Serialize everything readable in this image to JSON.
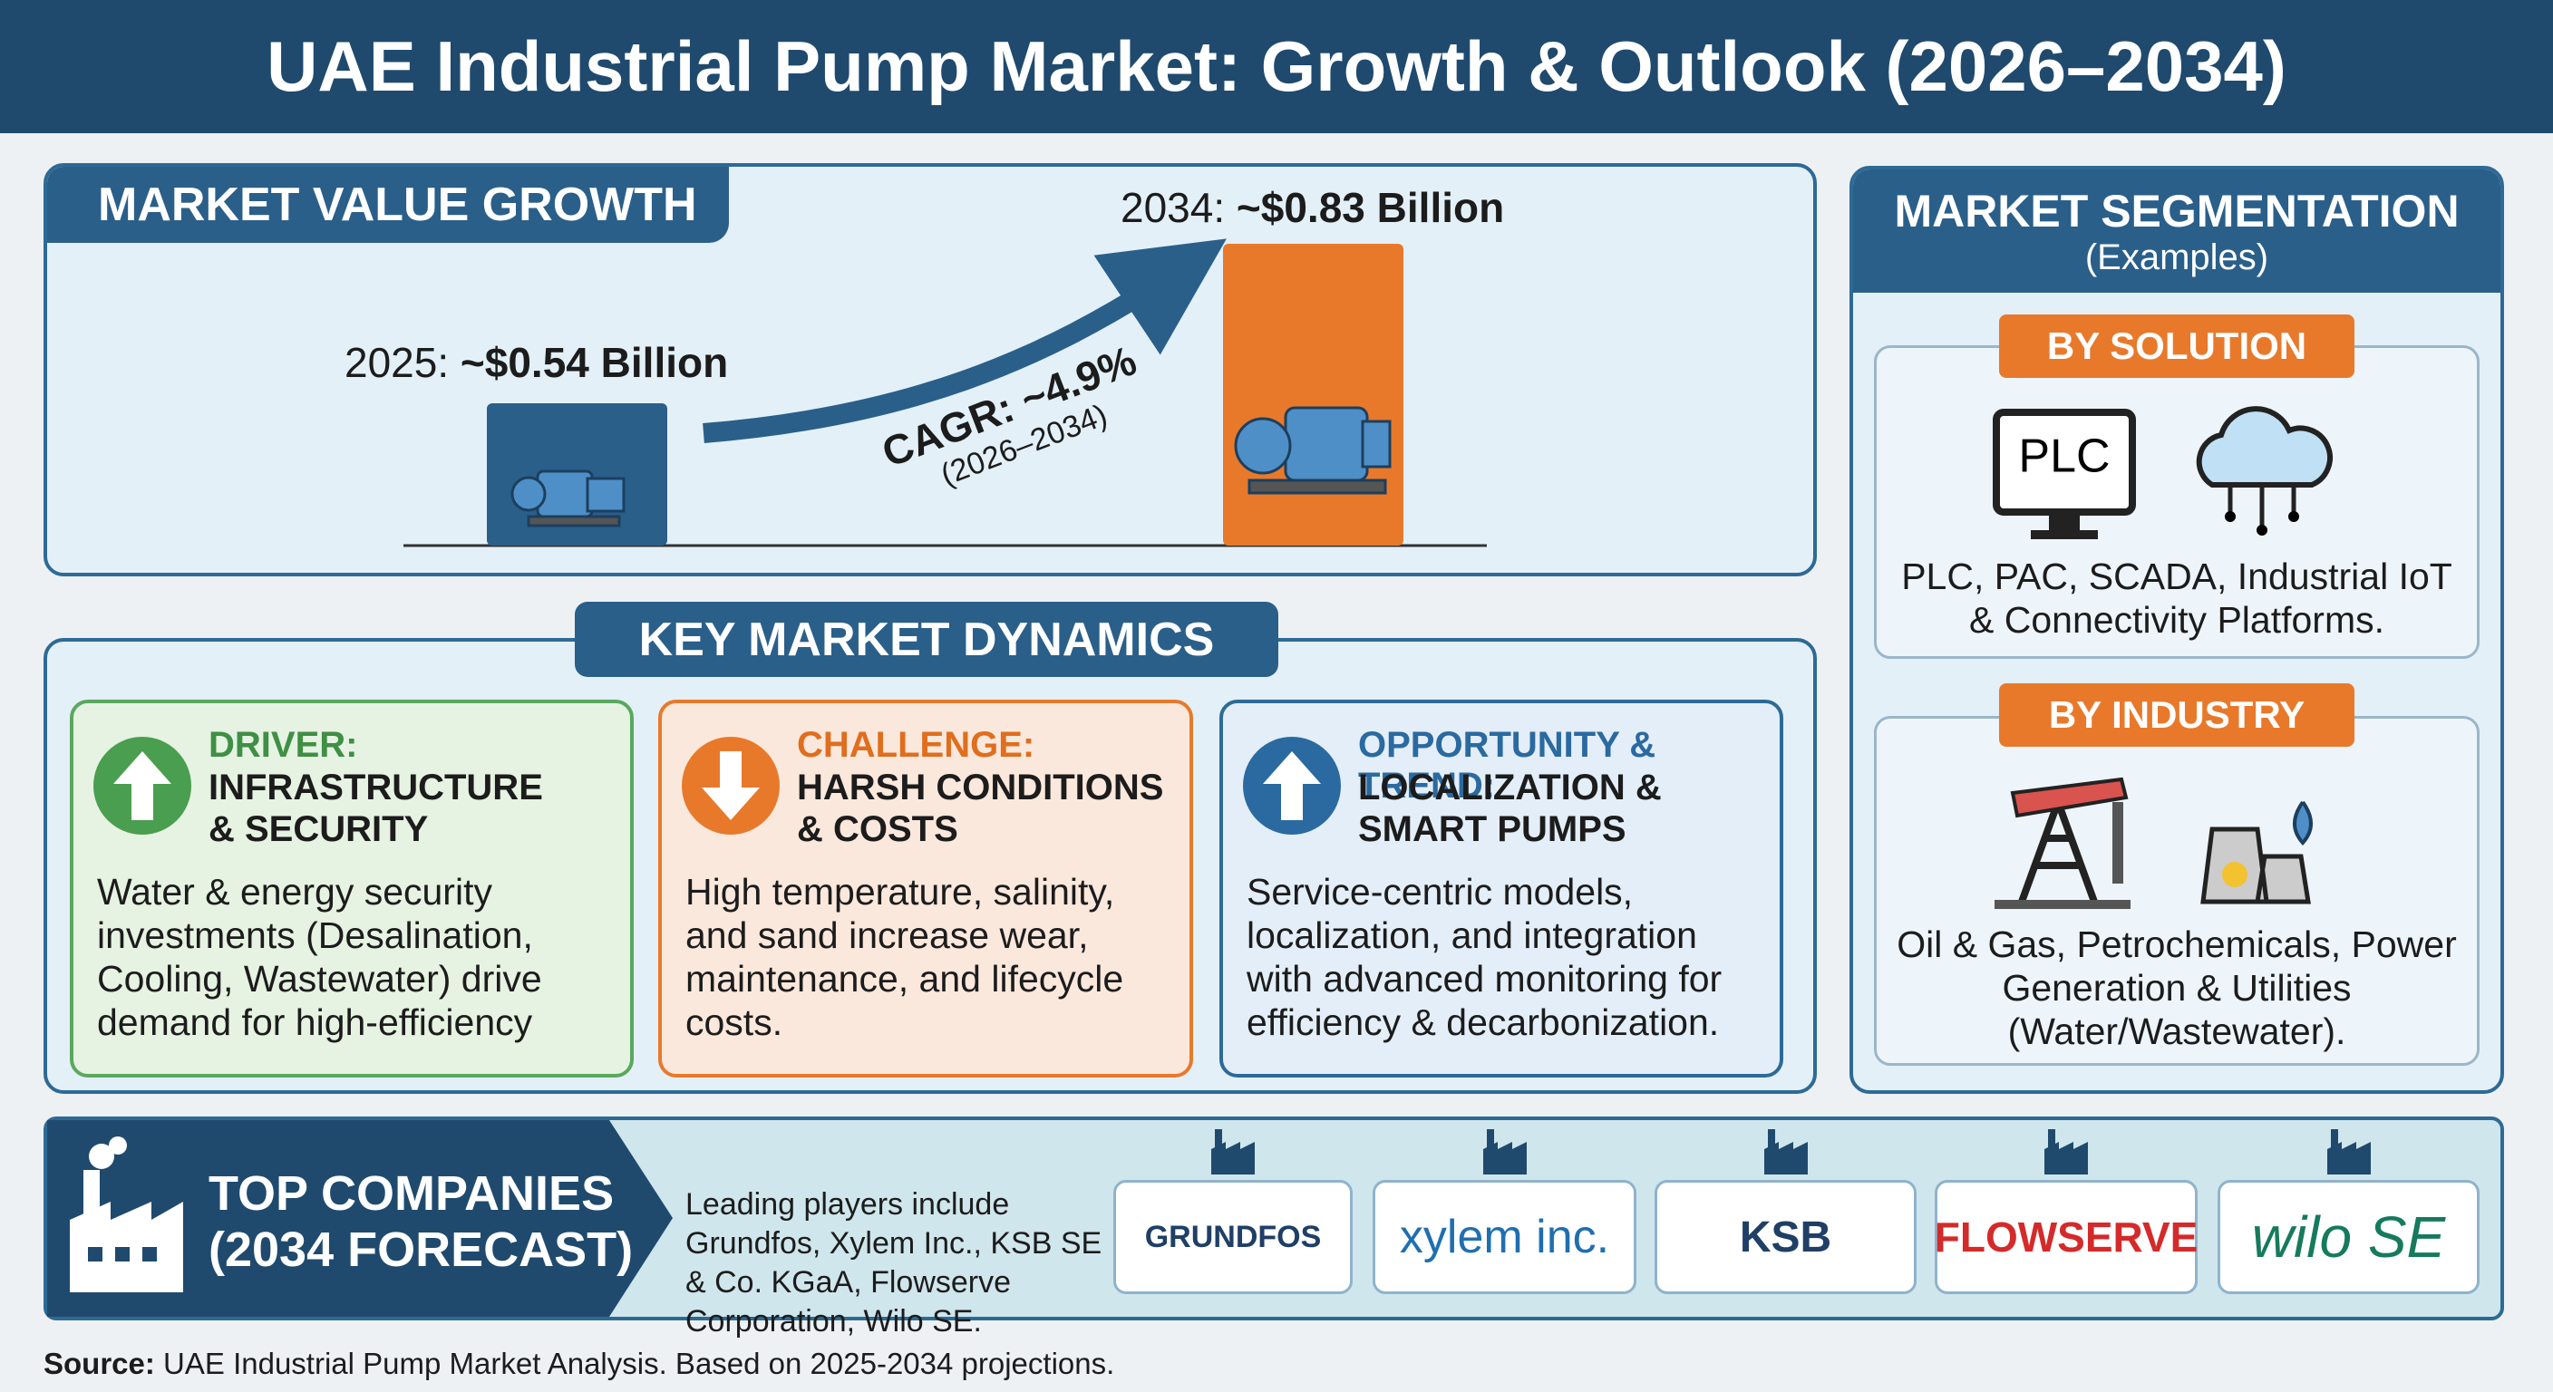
{
  "header": {
    "title": "UAE Industrial Pump Market: Growth & Outlook (2026–2034)"
  },
  "market_value": {
    "heading": "MARKET VALUE GROWTH",
    "start": {
      "year": "2025:",
      "value": "~$0.54 Billion"
    },
    "end": {
      "year": "2034:",
      "value": "~$0.83 Billion"
    },
    "cagr": "CAGR: ~4.9%",
    "cagr_period": "(2026–2034)"
  },
  "dynamics": {
    "heading": "KEY MARKET DYNAMICS",
    "cards": [
      {
        "kind": "DRIVER:",
        "title": [
          "INFRASTRUCTURE",
          "& SECURITY"
        ],
        "text": "Water & energy security investments (Desalination, Cooling, Wastewater) drive demand for high-efficiency"
      },
      {
        "kind": "CHALLENGE:",
        "title": [
          "HARSH CONDITIONS",
          "& COSTS"
        ],
        "text": "High temperature, salinity, and sand increase wear, maintenance, and lifecycle costs."
      },
      {
        "kind": "OPPORTUNITY & TREND:",
        "title": [
          "LOCALIZATION &",
          "SMART PUMPS"
        ],
        "text": "Service-centric models, localization, and integration with advanced monitoring for efficiency & decarbonization."
      }
    ]
  },
  "segmentation": {
    "heading": "MARKET SEGMENTATION",
    "subheading": "(Examples)",
    "groups": [
      {
        "label": "BY SOLUTION",
        "icon_text": "PLC",
        "text": "PLC, PAC, SCADA, Industrial IoT & Connectivity Platforms."
      },
      {
        "label": "BY INDUSTRY",
        "text": "Oil & Gas, Petrochemicals, Power Generation & Utilities (Water/Wastewater)."
      }
    ]
  },
  "companies": {
    "heading": [
      "TOP COMPANIES",
      "(2034 FORECAST)"
    ],
    "text": "Leading players include Grundfos, Xylem Inc., KSB SE & Co. KGaA, Flowserve Corporation, Wilo SE.",
    "logos": [
      "GRUNDFOS",
      "xylem inc.",
      "KSB",
      "FLOWSERVE",
      "wilo SE"
    ]
  },
  "source": {
    "label": "Source:",
    "text": "UAE Industrial Pump Market Analysis. Based on 2025-2034 projections."
  }
}
